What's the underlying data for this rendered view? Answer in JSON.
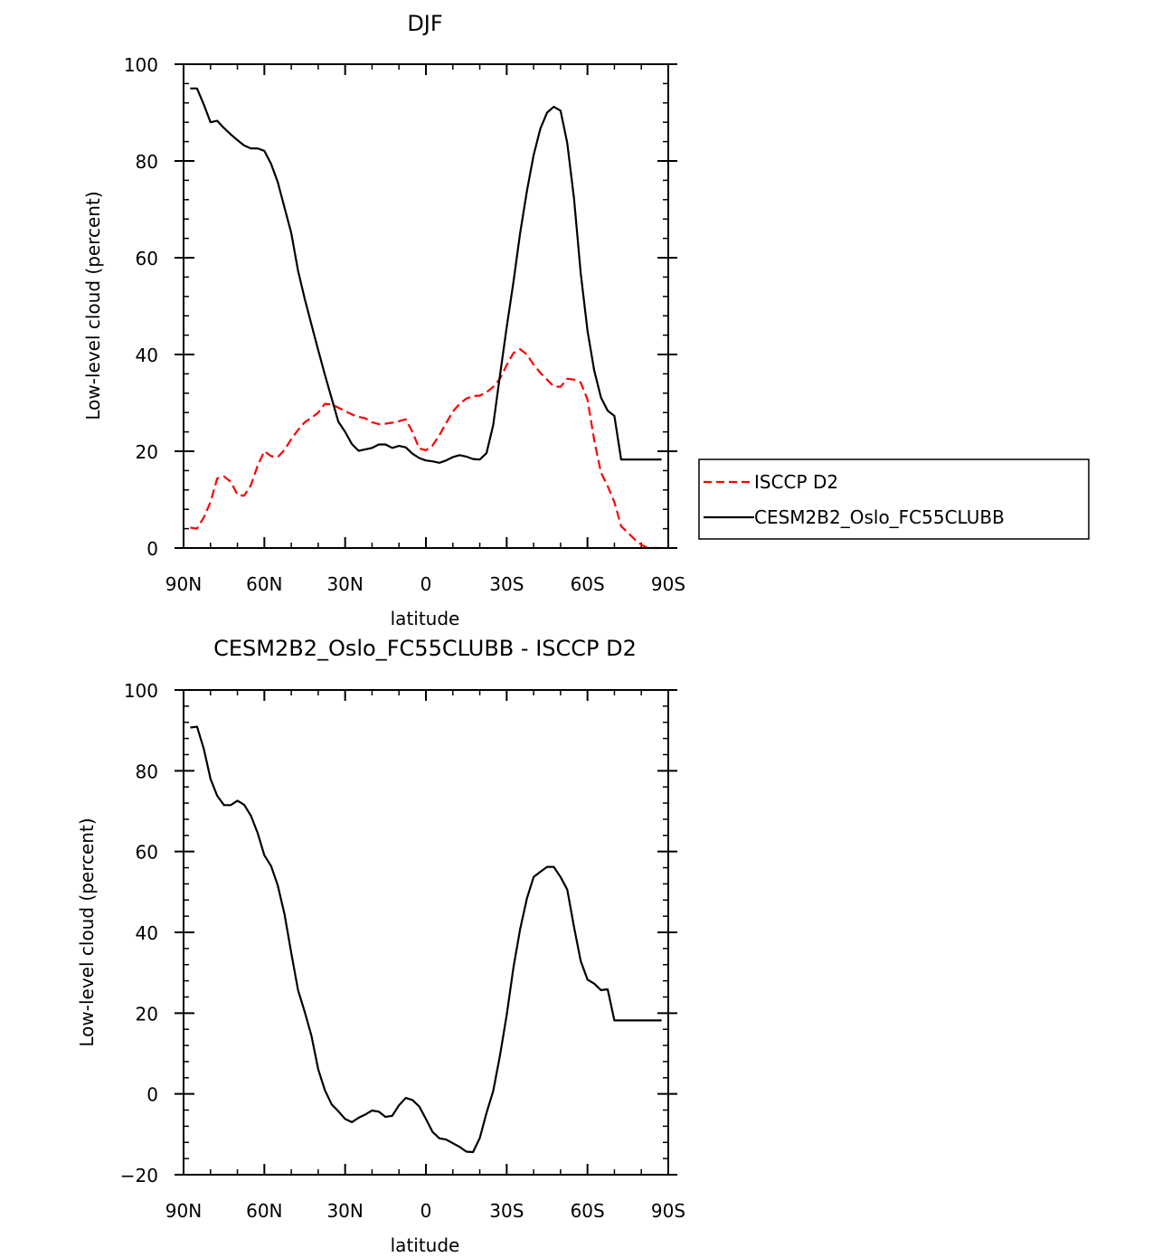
{
  "chart_data": [
    {
      "type": "line",
      "title": "DJF",
      "xlabel": "latitude",
      "ylabel": "Low-level cloud (percent)",
      "xlim": [
        -90,
        90
      ],
      "ylim": [
        0,
        100
      ],
      "x_ticks": [
        -90,
        -60,
        -30,
        0,
        30,
        60,
        90
      ],
      "x_tick_labels": [
        "90N",
        "60N",
        "30N",
        "0",
        "30S",
        "60S",
        "90S"
      ],
      "y_ticks": [
        0,
        20,
        40,
        60,
        80,
        100
      ],
      "y_tick_labels": [
        "0",
        "20",
        "40",
        "60",
        "80",
        "100"
      ],
      "legend": {
        "placement": "right",
        "entries": [
          "ISCCP D2",
          "CESM2B2_Oslo_FC55CLUBB"
        ]
      },
      "series": [
        {
          "name": "ISCCP D2",
          "color": "#ff0000",
          "style": "dashed",
          "x": [
            -87.5,
            -85,
            -82.5,
            -80,
            -77.5,
            -75,
            -72.5,
            -70,
            -67.5,
            -65,
            -62.5,
            -60,
            -57.5,
            -55,
            -52.5,
            -50,
            -47.5,
            -45,
            -42.5,
            -40,
            -37.5,
            -35,
            -32.5,
            -30,
            -27.5,
            -25,
            -22.5,
            -20,
            -17.5,
            -15,
            -12.5,
            -10,
            -7.5,
            -5,
            -2.5,
            0,
            2.5,
            5,
            7.5,
            10,
            12.5,
            15,
            17.5,
            20,
            22.5,
            25,
            27.5,
            30,
            32.5,
            35,
            37.5,
            40,
            42.5,
            45,
            47.5,
            50,
            52.5,
            55,
            57.5,
            60,
            62.5,
            65,
            67.5,
            70,
            72.5,
            75,
            77.5,
            80,
            82.5,
            85,
            87.5
          ],
          "values": [
            4.2,
            4.0,
            6.3,
            9.5,
            14.4,
            14.8,
            13.7,
            11.0,
            10.8,
            13.0,
            17.0,
            20.0,
            19.0,
            18.8,
            20.3,
            22.5,
            24.4,
            26.0,
            26.9,
            28.0,
            29.8,
            29.7,
            29.0,
            28.3,
            27.6,
            27.1,
            26.8,
            26.0,
            25.6,
            25.7,
            25.9,
            26.2,
            26.6,
            24.0,
            20.6,
            20.2,
            21.2,
            23.3,
            25.8,
            28.2,
            29.8,
            30.9,
            31.4,
            31.5,
            32.2,
            33.3,
            35.0,
            37.8,
            40.3,
            41.1,
            40.0,
            37.9,
            36.2,
            34.8,
            33.4,
            33.3,
            35.0,
            34.8,
            34.2,
            30.7,
            22.3,
            15.6,
            12.8,
            9.5,
            4.5,
            3.2,
            1.8,
            0.7,
            0.0,
            0.0,
            0.0
          ]
        },
        {
          "name": "CESM2B2_Oslo_FC55CLUBB",
          "color": "#000000",
          "style": "solid",
          "x": [
            -87.5,
            -85,
            -82.5,
            -80,
            -77.5,
            -75,
            -72.5,
            -70,
            -67.5,
            -65,
            -62.5,
            -60,
            -57.5,
            -55,
            -52.5,
            -50,
            -47.5,
            -45,
            -42.5,
            -40,
            -37.5,
            -35,
            -32.5,
            -30,
            -27.5,
            -25,
            -22.5,
            -20,
            -17.5,
            -15,
            -12.5,
            -10,
            -7.5,
            -5,
            -2.5,
            0,
            2.5,
            5,
            7.5,
            10,
            12.5,
            15,
            17.5,
            20,
            22.5,
            25,
            27.5,
            30,
            32.5,
            35,
            37.5,
            40,
            42.5,
            45,
            47.5,
            50,
            52.5,
            55,
            57.5,
            60,
            62.5,
            65,
            67.5,
            70,
            72.5,
            75,
            77.5,
            80,
            82.5,
            85,
            87.5
          ],
          "values": [
            95.0,
            95.0,
            91.7,
            88.0,
            88.3,
            86.8,
            85.5,
            84.3,
            83.2,
            82.6,
            82.6,
            82.1,
            79.4,
            75.6,
            70.3,
            65.1,
            57.3,
            51.5,
            46.2,
            40.9,
            35.8,
            30.9,
            26.1,
            24.0,
            21.5,
            20.1,
            20.4,
            20.7,
            21.4,
            21.4,
            20.7,
            21.1,
            20.8,
            19.5,
            18.6,
            18.1,
            17.9,
            17.6,
            18.1,
            18.8,
            19.2,
            18.9,
            18.4,
            18.3,
            19.6,
            25.4,
            35.7,
            45.6,
            55.0,
            65.1,
            73.8,
            81.2,
            86.7,
            90.0,
            91.2,
            90.4,
            83.7,
            72.2,
            56.8,
            44.9,
            36.7,
            31.1,
            28.4,
            27.3,
            18.3,
            18.3,
            18.3,
            18.3,
            18.3,
            18.3,
            18.3
          ]
        }
      ]
    },
    {
      "type": "line",
      "title": "CESM2B2_Oslo_FC55CLUBB - ISCCP D2",
      "xlabel": "latitude",
      "ylabel": "Low-level cloud (percent)",
      "xlim": [
        -90,
        90
      ],
      "ylim": [
        -20,
        100
      ],
      "x_ticks": [
        -90,
        -60,
        -30,
        0,
        30,
        60,
        90
      ],
      "x_tick_labels": [
        "90N",
        "60N",
        "30N",
        "0",
        "30S",
        "60S",
        "90S"
      ],
      "y_ticks": [
        -20,
        0,
        20,
        40,
        60,
        80,
        100
      ],
      "y_tick_labels": [
        "−20",
        "0",
        "20",
        "40",
        "60",
        "80",
        "100"
      ],
      "series": [
        {
          "name": "CESM2B2_Oslo_FC55CLUBB - ISCCP D2",
          "color": "#000000",
          "style": "solid",
          "x": [
            -87.5,
            -85,
            -82.5,
            -80,
            -77.5,
            -75,
            -72.5,
            -70,
            -67.5,
            -65,
            -62.5,
            -60,
            -57.5,
            -55,
            -52.5,
            -50,
            -47.5,
            -45,
            -42.5,
            -40,
            -37.5,
            -35,
            -32.5,
            -30,
            -27.5,
            -25,
            -22.5,
            -20,
            -17.5,
            -15,
            -12.5,
            -10,
            -7.5,
            -5,
            -2.5,
            0,
            2.5,
            5,
            7.5,
            10,
            12.5,
            15,
            17.5,
            20,
            22.5,
            25,
            27.5,
            30,
            32.5,
            35,
            37.5,
            40,
            42.5,
            45,
            47.5,
            50,
            52.5,
            55,
            57.5,
            60,
            62.5,
            65,
            67.5,
            70,
            72.5,
            75,
            77.5,
            80,
            82.5,
            85,
            87.5
          ],
          "values": [
            90.7,
            90.9,
            85.5,
            78.0,
            73.8,
            71.5,
            71.5,
            72.6,
            71.6,
            68.9,
            64.6,
            59.1,
            56.4,
            51.6,
            44.4,
            34.9,
            25.7,
            20.3,
            14.4,
            6.1,
            0.9,
            -2.6,
            -4.3,
            -6.2,
            -7.0,
            -5.9,
            -5.1,
            -4.1,
            -4.4,
            -5.7,
            -5.4,
            -2.8,
            -1.0,
            -1.5,
            -3.1,
            -6.2,
            -9.4,
            -11.0,
            -11.3,
            -12.2,
            -13.1,
            -14.3,
            -14.4,
            -10.9,
            -4.7,
            0.7,
            9.5,
            19.5,
            31.3,
            40.8,
            48.4,
            53.7,
            55.0,
            56.2,
            56.2,
            53.7,
            50.6,
            41.3,
            32.9,
            28.3,
            27.3,
            25.7,
            25.9,
            18.2,
            18.2,
            18.2,
            18.2,
            18.2,
            18.2,
            18.2,
            18.2
          ]
        }
      ]
    }
  ]
}
